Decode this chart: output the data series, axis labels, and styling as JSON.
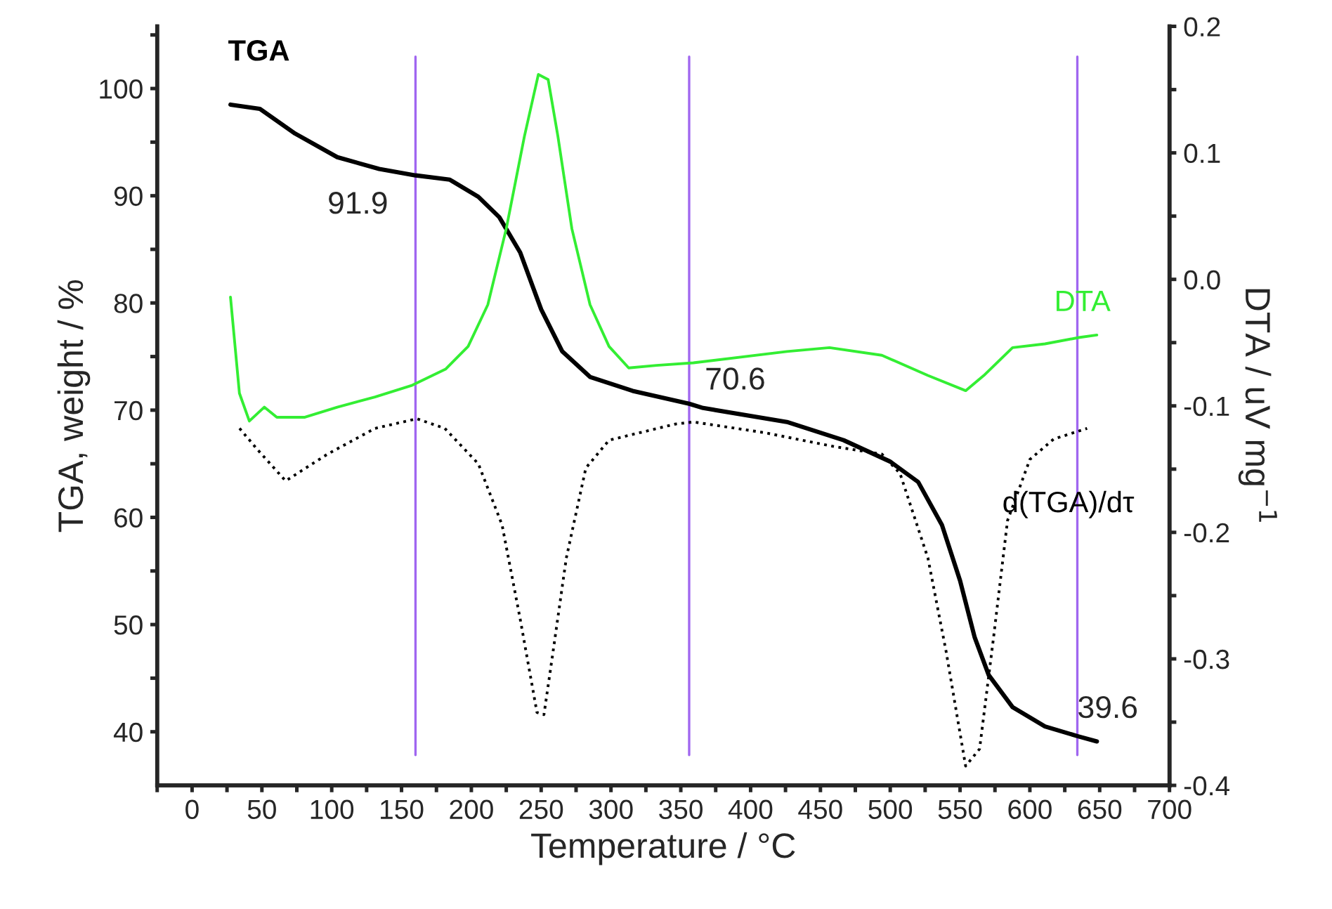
{
  "chart_data": {
    "type": "line",
    "xlabel": "Temperature / °C",
    "ylabel": "TGA, weight / %",
    "y2label": "DTA / uV mg$^{−1}$",
    "xlim": [
      -25,
      700
    ],
    "xticks": [
      0,
      {
        "value": 25,
        "label": null
      },
      50,
      {
        "value": 75,
        "label": null
      },
      100,
      {
        "value": 125,
        "label": null
      },
      150,
      {
        "value": 175,
        "label": null
      },
      200,
      {
        "value": 225,
        "label": null
      },
      250,
      {
        "value": 275,
        "label": null
      },
      300,
      {
        "value": 325,
        "label": null
      },
      350,
      {
        "value": 375,
        "label": null
      },
      400,
      {
        "value": 425,
        "label": null
      },
      450,
      {
        "value": 475,
        "label": null
      },
      500,
      {
        "value": 525,
        "label": null
      },
      550,
      {
        "value": 575,
        "label": null
      },
      600,
      {
        "value": 625,
        "label": null
      },
      650,
      {
        "value": 675,
        "label": null
      },
      700,
      {
        "value": -25,
        "label": null
      }
    ],
    "ylim": [
      35,
      105.8
    ],
    "yticks": [
      40,
      {
        "value": 45,
        "label": null
      },
      50,
      {
        "value": 55,
        "label": null
      },
      60,
      {
        "value": 65,
        "label": null
      },
      70,
      {
        "value": 75,
        "label": null
      },
      80,
      {
        "value": 85,
        "label": null
      },
      90,
      {
        "value": 95,
        "label": null
      },
      100,
      {
        "value": 105,
        "label": null
      }
    ],
    "y2lim": [
      -0.4,
      0.2
    ],
    "y2ticks": [
      {
        "value": -0.4,
        "label": "-0.4"
      },
      {
        "value": -0.35,
        "label": null
      },
      {
        "value": -0.3,
        "label": "-0.3"
      },
      {
        "value": -0.25,
        "label": null
      },
      {
        "value": -0.2,
        "label": "-0.2"
      },
      {
        "value": -0.15,
        "label": null
      },
      {
        "value": -0.1,
        "label": "-0.1"
      },
      {
        "value": -0.05,
        "label": null
      },
      {
        "value": 0.0,
        "label": "0.0"
      },
      {
        "value": 0.05,
        "label": null
      },
      {
        "value": 0.1,
        "label": "0.1"
      },
      {
        "value": 0.15,
        "label": null
      },
      {
        "value": 0.2,
        "label": "0.2"
      }
    ],
    "grid": false,
    "legend": false,
    "marker": "none",
    "series": [
      {
        "name": "TGA",
        "color": "#000000",
        "line_style": "solid",
        "x": [
          27.5,
          48.6,
          73.8,
          104,
          134,
          160,
          184.6,
          205,
          220,
          235,
          250,
          265,
          285,
          315.5,
          356,
          366,
          426,
          466.6,
          500,
          520,
          537,
          550,
          560.5,
          570.5,
          587.6,
          610.8,
          634,
          648
        ],
        "values": [
          98.5,
          98.1,
          95.8,
          93.6,
          92.5,
          91.9,
          91.5,
          89.9,
          88,
          84.7,
          79.4,
          75.5,
          73.1,
          71.8,
          70.6,
          70.2,
          68.9,
          67.2,
          65.2,
          63.3,
          59.3,
          54.1,
          48.8,
          45.3,
          42.3,
          40.5,
          39.6,
          39.1
        ]
      },
      {
        "name": "DTA",
        "color": "#33ee33",
        "axis": "y2",
        "line_style": "solid",
        "x": [
          27.5,
          33.9,
          41,
          51.7,
          60.7,
          80.8,
          104,
          131,
          157,
          181.5,
          197.7,
          211.8,
          225,
          238,
          248,
          255,
          262,
          272,
          285,
          298.6,
          312.7,
          332.6,
          359,
          426,
          456.5,
          494,
          527,
          554,
          567,
          587.6,
          610.8,
          635,
          648
        ],
        "values": [
          -0.014,
          -0.09,
          -0.112,
          -0.101,
          -0.109,
          -0.109,
          -0.101,
          -0.093,
          -0.084,
          -0.071,
          -0.053,
          -0.02,
          0.04,
          0.113,
          0.162,
          0.158,
          0.113,
          0.04,
          -0.02,
          -0.053,
          -0.07,
          -0.068,
          -0.066,
          -0.057,
          -0.054,
          -0.06,
          -0.076,
          -0.088,
          -0.076,
          -0.054,
          -0.051,
          -0.046,
          -0.044
        ]
      },
      {
        "name": "d(TGA)/dτ",
        "color": "#000000",
        "line_style": "dotted",
        "x": [
          34,
          47,
          67,
          97,
          131,
          161,
          181,
          205,
          222,
          235,
          247,
          252,
          258,
          268,
          282,
          298.6,
          346,
          359,
          410,
          460,
          494,
          507,
          527,
          540,
          554,
          564,
          574,
          584,
          600,
          617,
          641
        ],
        "values": [
          68.3,
          66.3,
          63.4,
          65.9,
          68.3,
          69.2,
          68.3,
          65.0,
          59.3,
          50.5,
          41.8,
          41.6,
          47.0,
          56.2,
          64.6,
          67.2,
          68.7,
          68.9,
          67.9,
          66.6,
          65.9,
          64.1,
          56.2,
          47.5,
          36.8,
          38.4,
          48.8,
          59.7,
          65.4,
          67.3,
          68.3
        ]
      }
    ],
    "ref_lines": [
      {
        "axis": "x",
        "value": 160,
        "color": "#a066f0"
      },
      {
        "axis": "x",
        "value": 356,
        "color": "#a066f0"
      },
      {
        "axis": "x",
        "value": 634,
        "color": "#a066f0"
      }
    ],
    "annotations": [
      {
        "text": "91.9",
        "x": 160,
        "y": 91.9
      },
      {
        "text": "70.6",
        "x": 356,
        "y": 70.6
      },
      {
        "text": "39.6",
        "x": 634,
        "y": 39.6
      }
    ]
  }
}
